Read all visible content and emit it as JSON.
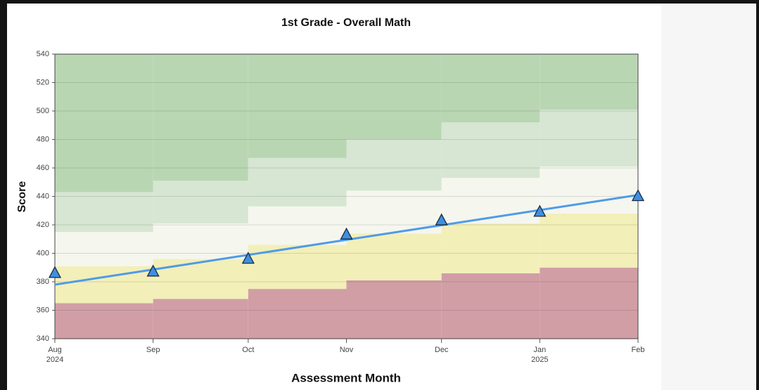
{
  "chart_data": {
    "type": "line",
    "title": "1st Grade - Overall Math",
    "ylabel": "Score",
    "xlabel": "Assessment Month",
    "xlim": [
      "2024-08",
      "2025-02"
    ],
    "ylim": [
      340,
      540
    ],
    "yticks": [
      340,
      360,
      380,
      400,
      420,
      440,
      460,
      480,
      500,
      520,
      540
    ],
    "xticks": [
      {
        "value": "2024-08",
        "label": "Aug"
      },
      {
        "value": "2024-09",
        "label": "Sep"
      },
      {
        "value": "2024-10",
        "label": "Oct"
      },
      {
        "value": "2024-11",
        "label": "Nov"
      },
      {
        "value": "2024-12",
        "label": "Dec"
      },
      {
        "value": "2025-01",
        "label": "Jan"
      },
      {
        "value": "2025-02",
        "label": "Feb"
      }
    ],
    "year_labels": [
      {
        "value": "2024-08",
        "label": "2024"
      },
      {
        "value": "2025-01",
        "label": "2025"
      }
    ],
    "grid": true,
    "x": [
      "2024-08",
      "2024-09",
      "2024-10",
      "2024-11",
      "2024-12",
      "2025-01",
      "2025-02"
    ],
    "thresholds": [
      [
        365,
        368,
        375,
        381,
        386,
        390
      ],
      [
        391,
        396,
        406,
        414,
        421,
        428
      ],
      [
        415,
        421,
        433,
        444,
        453,
        461
      ],
      [
        443,
        451,
        467,
        480,
        492,
        501
      ]
    ],
    "band_colors": [
      "#d19ea6",
      "#f2efb9",
      "#f5f6ee",
      "#d6e6d2",
      "#b9d6b3"
    ],
    "series": [
      {
        "color": "#3f8fe0",
        "values": [
          386,
          387,
          396,
          413,
          423,
          429,
          440
        ]
      }
    ],
    "trend": {
      "color": "#4d9be8",
      "x": [
        "2024-08",
        "2025-02"
      ],
      "values": [
        378,
        441
      ]
    }
  }
}
